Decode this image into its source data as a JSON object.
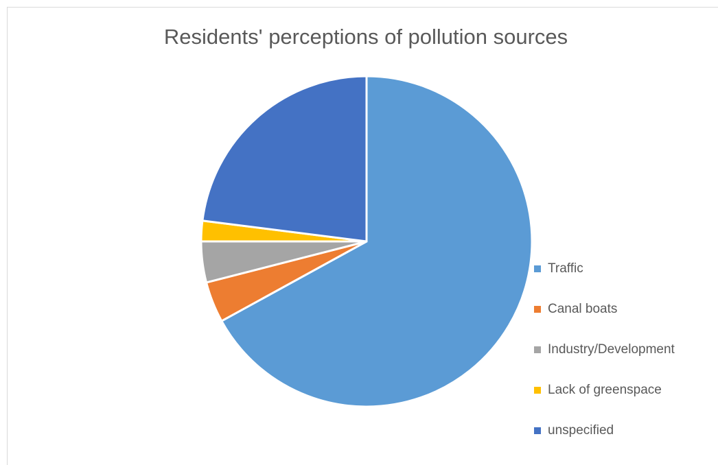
{
  "chart_data": {
    "type": "pie",
    "title": "Residents' perceptions of pollution sources",
    "categories": [
      "Traffic",
      "Canal boats",
      "Industry/Development",
      "Lack of greenspace",
      "unspecified"
    ],
    "values": [
      67,
      4,
      4,
      2,
      23
    ],
    "colors": [
      "#5B9BD5",
      "#ED7D31",
      "#A5A5A5",
      "#FFC000",
      "#4472C4"
    ],
    "legend_position": "right",
    "start_angle": "12 o'clock",
    "direction": "clockwise"
  }
}
